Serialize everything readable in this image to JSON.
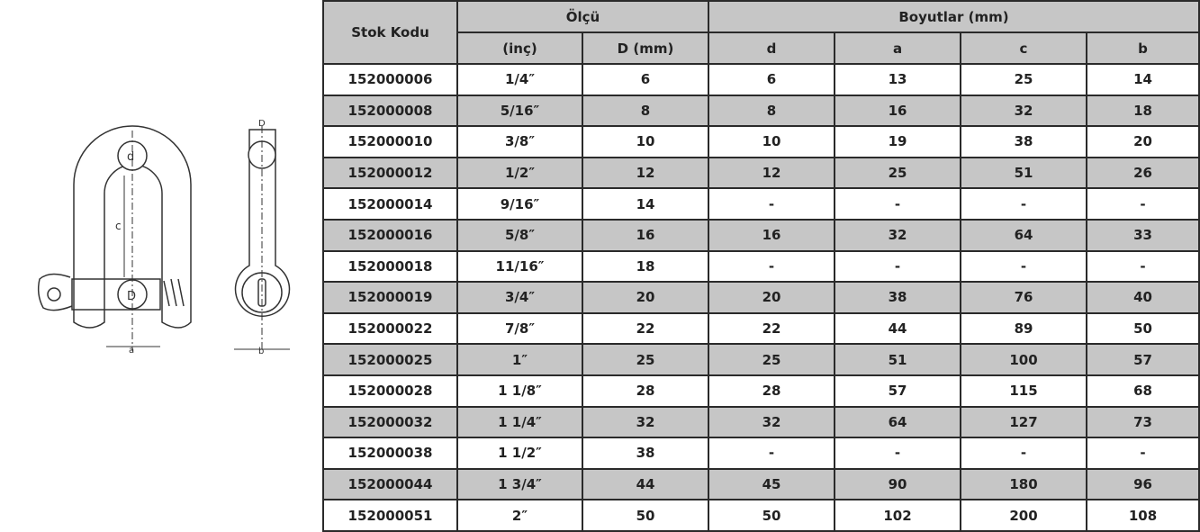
{
  "diagram": {
    "labels": [
      "d",
      "c",
      "D",
      "a",
      "D",
      "b"
    ]
  },
  "table": {
    "header": {
      "stock_code": "Stok Kodu",
      "size_group": "Ölçü",
      "dims_group": "Boyutlar (mm)",
      "size_cols": [
        "(inç)",
        "D (mm)"
      ],
      "dim_cols": [
        "d",
        "a",
        "c",
        "b"
      ]
    },
    "rows": [
      [
        "152000006",
        "1/4″",
        "6",
        "6",
        "13",
        "25",
        "14"
      ],
      [
        "152000008",
        "5/16″",
        "8",
        "8",
        "16",
        "32",
        "18"
      ],
      [
        "152000010",
        "3/8″",
        "10",
        "10",
        "19",
        "38",
        "20"
      ],
      [
        "152000012",
        "1/2″",
        "12",
        "12",
        "25",
        "51",
        "26"
      ],
      [
        "152000014",
        "9/16″",
        "14",
        "-",
        "-",
        "-",
        "-"
      ],
      [
        "152000016",
        "5/8″",
        "16",
        "16",
        "32",
        "64",
        "33"
      ],
      [
        "152000018",
        "11/16″",
        "18",
        "-",
        "-",
        "-",
        "-"
      ],
      [
        "152000019",
        "3/4″",
        "20",
        "20",
        "38",
        "76",
        "40"
      ],
      [
        "152000022",
        "7/8″",
        "22",
        "22",
        "44",
        "89",
        "50"
      ],
      [
        "152000025",
        "1″",
        "25",
        "25",
        "51",
        "100",
        "57"
      ],
      [
        "152000028",
        "1 1/8″",
        "28",
        "28",
        "57",
        "115",
        "68"
      ],
      [
        "152000032",
        "1 1/4″",
        "32",
        "32",
        "64",
        "127",
        "73"
      ],
      [
        "152000038",
        "1 1/2″",
        "38",
        "-",
        "-",
        "-",
        "-"
      ],
      [
        "152000044",
        "1 3/4″",
        "44",
        "45",
        "90",
        "180",
        "96"
      ],
      [
        "152000051",
        "2″",
        "50",
        "50",
        "102",
        "200",
        "108"
      ]
    ]
  }
}
